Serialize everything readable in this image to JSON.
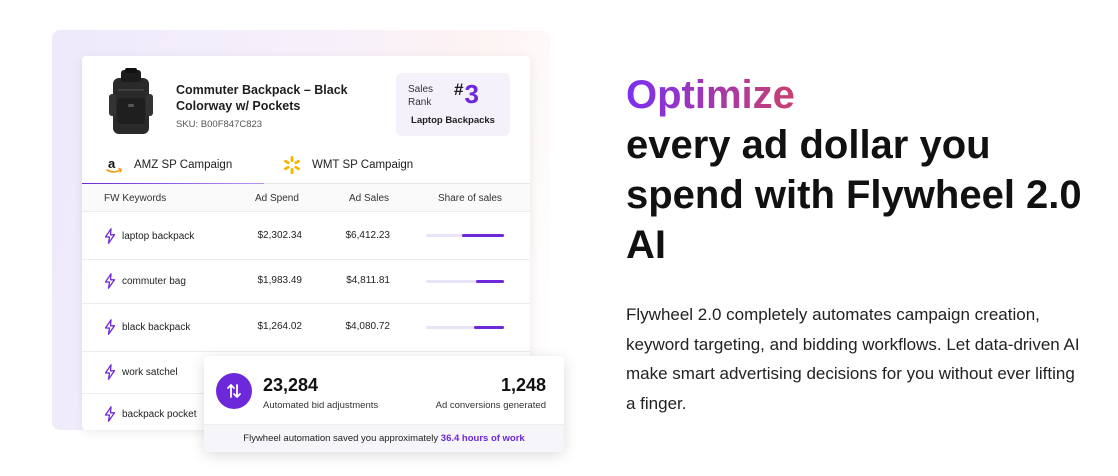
{
  "product": {
    "title": "Commuter Backpack – Black Colorway w/ Pockets",
    "sku": "SKU: B00F847C823",
    "image_icon": "backpack-image"
  },
  "rank": {
    "label": "Sales Rank",
    "hash": "#",
    "value": "3",
    "category": "Laptop Backpacks"
  },
  "tabs": [
    {
      "label": "AMZ SP Campaign",
      "icon": "amazon-logo-icon",
      "active": true
    },
    {
      "label": "WMT SP Campaign",
      "icon": "walmart-spark-icon",
      "active": false
    }
  ],
  "table": {
    "headers": [
      "FW Keywords",
      "Ad Spend",
      "Ad Sales",
      "Share of sales"
    ],
    "rows": [
      {
        "keyword": "laptop backpack",
        "spend": "$2,302.34",
        "sales": "$6,412.23",
        "share": 0.54
      },
      {
        "keyword": "commuter bag",
        "spend": "$1,983.49",
        "sales": "$4,811.81",
        "share": 0.36
      },
      {
        "keyword": "black backpack",
        "spend": "$1,264.02",
        "sales": "$4,080.72",
        "share": 0.38
      },
      {
        "keyword": "work satchel",
        "spend": "",
        "sales": "",
        "share": null
      },
      {
        "keyword": "backpack pocket",
        "spend": "",
        "sales": "",
        "share": null
      }
    ]
  },
  "automation": {
    "icon": "swap-arrows-icon",
    "stat1_value": "23,284",
    "stat1_label": "Automated bid adjustments",
    "stat2_value": "1,248",
    "stat2_label": "Ad conversions generated",
    "footer_text": "Flywheel automation saved you approximately ",
    "footer_highlight": "36.4 hours of work"
  },
  "headline": {
    "accent": "Optimize",
    "main": "every ad dollar you spend with Flywheel 2.0 AI"
  },
  "description": "Flywheel 2.0 completely automates campaign creation, keyword targeting, and bidding workflows. Let data-driven AI make smart advertising decisions for you without ever lifting a finger.",
  "colors": {
    "accent": "#6d28d9",
    "gradient_start": "#7b2ff2",
    "gradient_end": "#cb3f6e",
    "walmart_spark": "#f8b400"
  }
}
